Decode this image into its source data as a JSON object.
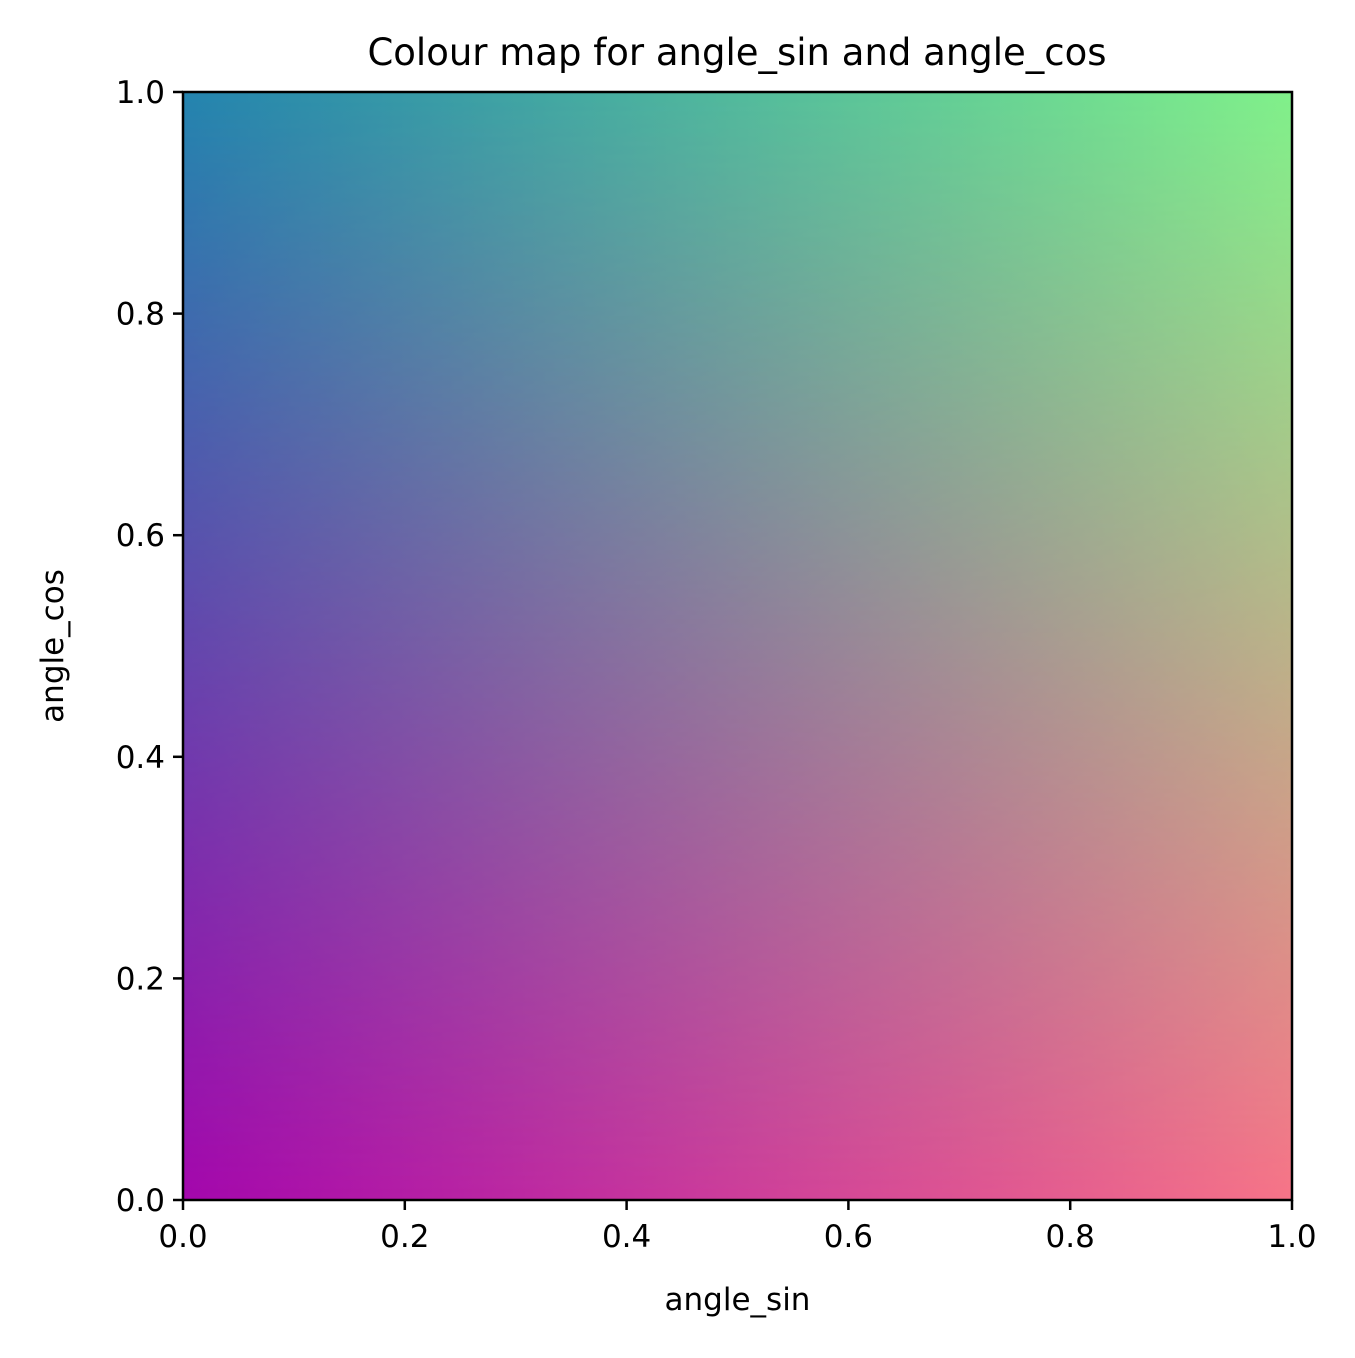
{
  "chart_data": {
    "type": "heatmap",
    "title": "Colour map for angle_sin and angle_cos",
    "xlabel": "angle_sin",
    "ylabel": "angle_cos",
    "xlim": [
      0.0,
      1.0
    ],
    "ylim": [
      0.0,
      1.0
    ],
    "x_ticks": [
      0.0,
      0.2,
      0.4,
      0.6,
      0.8,
      1.0
    ],
    "y_ticks": [
      0.0,
      0.2,
      0.4,
      0.6,
      0.8,
      1.0
    ],
    "x_tick_labels": [
      "0.0",
      "0.2",
      "0.4",
      "0.6",
      "0.8",
      "1.0"
    ],
    "y_tick_labels": [
      "0.0",
      "0.2",
      "0.4",
      "0.6",
      "0.8",
      "1.0"
    ],
    "grid": false,
    "corner_colors": {
      "x0_y0": "#a407ad",
      "x1_y0": "#f77488",
      "x0_y1": "#2384ae",
      "x1_y1": "#80f18a"
    }
  }
}
